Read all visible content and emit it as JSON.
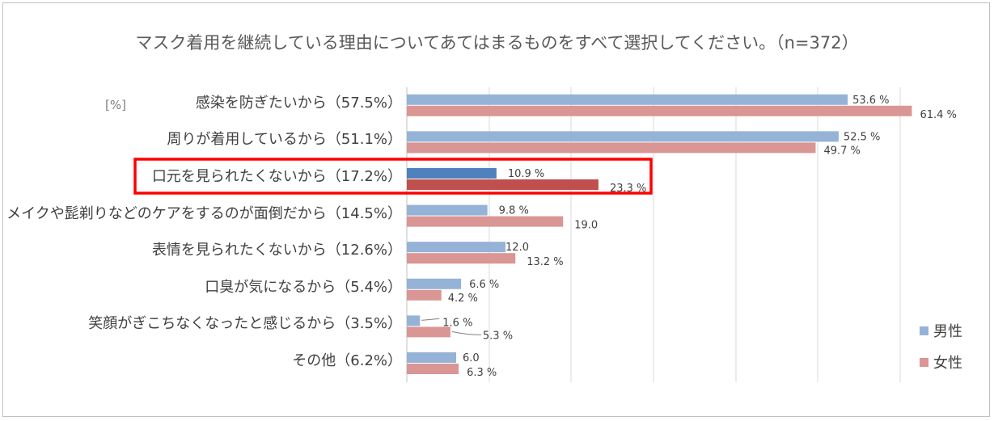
{
  "title": "マスク着用を継続している理由についてあてはまるものをすべて選択してください。（n=372）",
  "unit_label": "[%]",
  "legend": [
    {
      "name": "男性",
      "color": "#95b3d7"
    },
    {
      "name": "女性",
      "color": "#d99694"
    }
  ],
  "highlight_colors": {
    "male": "#4f81bd",
    "female": "#c0504d",
    "box": "#ff0000"
  },
  "chart_data": {
    "type": "bar",
    "orientation": "horizontal",
    "title": "マスク着用を継続している理由についてあてはまるものをすべて選択してください。（n=372）",
    "xlim": [
      0,
      60
    ],
    "grid": true,
    "categories": [
      "感染を防ぎたいから（57.5%）",
      "周りが着用しているから（51.1%）",
      "口元を見られたくないから（17.2%）",
      "メイクや髭剃りなどのケアをするのが面倒だから（14.5%）",
      "表情を見られたくないから（12.6%）",
      "口臭が気になるから（5.4%）",
      "笑顔がぎこちなくなったと感じるから（3.5%）",
      "その他（6.2%）"
    ],
    "highlighted_index": 2,
    "series": [
      {
        "name": "男性",
        "values": [
          53.6,
          52.5,
          10.9,
          9.8,
          12.0,
          6.6,
          1.6,
          6.0
        ],
        "labels": [
          "53.6 %",
          "52.5 %",
          "10.9 %",
          "9.8 %",
          "12.0",
          "6.6 %",
          "1.6 %",
          "6.0"
        ]
      },
      {
        "name": "女性",
        "values": [
          61.4,
          49.7,
          23.3,
          19.0,
          13.2,
          4.2,
          5.3,
          6.3
        ],
        "labels": [
          "61.4 %",
          "49.7 %",
          "23.3 %",
          "19.0",
          "13.2 %",
          "4.2 %",
          "5.3 %",
          "6.3 %"
        ]
      }
    ]
  }
}
